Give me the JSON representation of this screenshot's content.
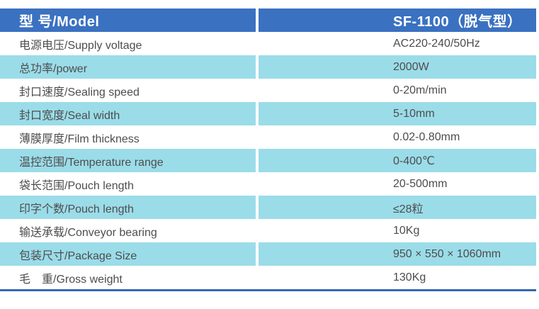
{
  "colors": {
    "header_bg": "#3a71c1",
    "header_text": "#ffffff",
    "row_bg": "#ffffff",
    "row_alt_bg": "#9bdce9",
    "body_text": "#4d4d4d",
    "bottom_border": "#3566b2"
  },
  "table": {
    "header": {
      "label": "型 号/Model",
      "value": "SF-1100（脱气型）"
    },
    "rows": [
      {
        "label": "电源电压/Supply voltage",
        "value": "AC220-240/50Hz"
      },
      {
        "label": "总功率/power",
        "value": "2000W"
      },
      {
        "label": "封口速度/Sealing speed",
        "value": "0-20m/min"
      },
      {
        "label": "封口宽度/Seal width",
        "value": "5-10mm"
      },
      {
        "label": "薄膜厚度/Film thickness",
        "value": "0.02-0.80mm"
      },
      {
        "label": "温控范围/Temperature range",
        "value": "0-400℃"
      },
      {
        "label": "袋长范围/Pouch length",
        "value": "20-500mm"
      },
      {
        "label": "印字个数/Pouch length",
        "value": "≤28粒"
      },
      {
        "label": "输送承载/Conveyor bearing",
        "value": "10Kg"
      },
      {
        "label": "包装尺寸/Package Size",
        "value": "950 × 550 × 1060mm"
      },
      {
        "label": "毛　重/Gross weight",
        "value": "130Kg"
      }
    ]
  }
}
